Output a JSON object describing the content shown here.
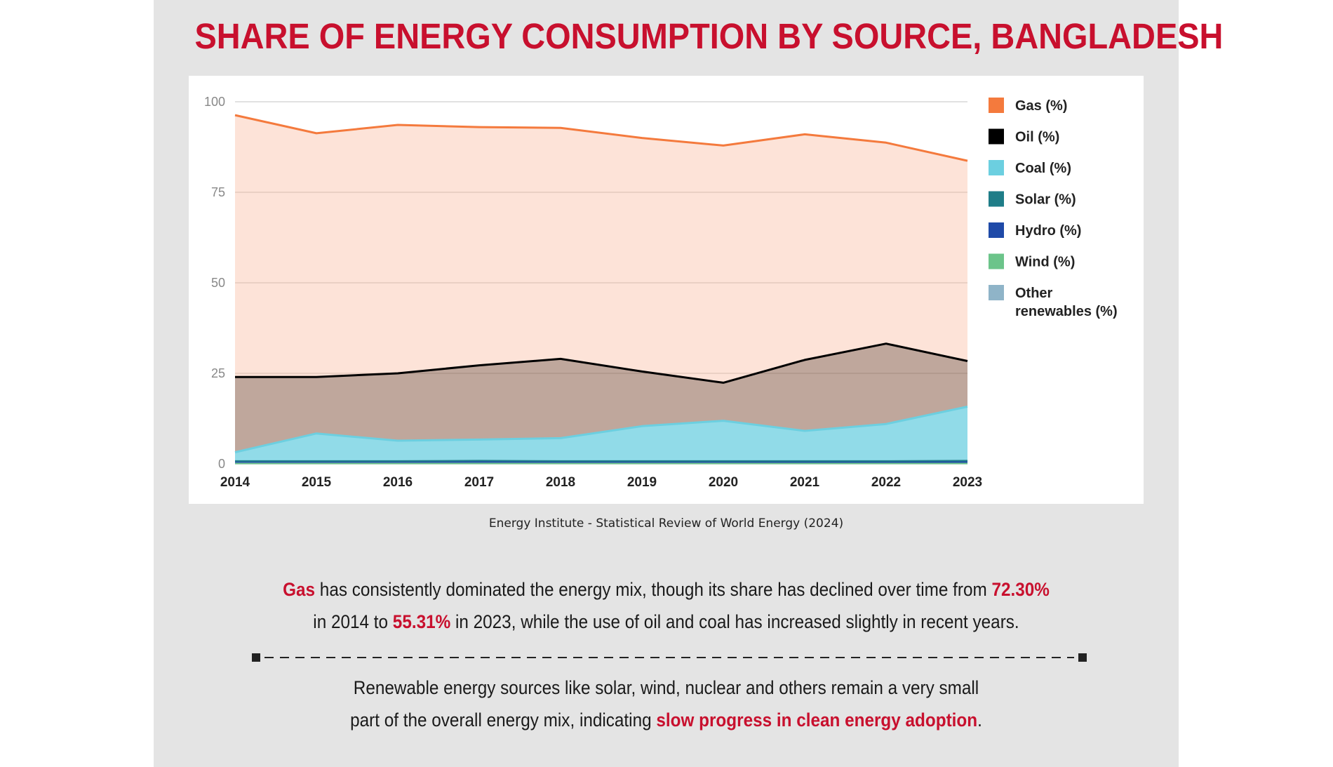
{
  "title": "SHARE OF ENERGY CONSUMPTION BY SOURCE, BANGLADESH",
  "source": "Energy Institute - Statistical Review of World Energy (2024)",
  "text": {
    "p1_a": "Gas",
    "p1_b": " has consistently dominated the energy mix, though its share has declined over time from ",
    "p1_c": "72.30%",
    "p1_d": "in 2014 to ",
    "p1_e": "55.31%",
    "p1_f": " in 2023, while the use of oil and coal has increased slightly in recent years.",
    "p2_a": "Renewable energy sources like solar, wind, nuclear and others remain a very small",
    "p2_b": "part of the overall energy mix, indicating ",
    "p2_c": "slow progress in clean energy adoption",
    "p2_d": "."
  },
  "colors": {
    "accent": "#c8102e",
    "gas": "#f47a3d",
    "oil": "#000000",
    "coal": "#6ccfe0",
    "solar": "#1f7d88",
    "hydro": "#1f4aa8",
    "wind": "#6cc48a",
    "other": "#8fb4c8"
  },
  "chart_data": {
    "type": "area",
    "stacked": true,
    "x": [
      2014,
      2015,
      2016,
      2017,
      2018,
      2019,
      2020,
      2021,
      2022,
      2023
    ],
    "ylim": [
      0,
      100
    ],
    "yticks": [
      0,
      25,
      50,
      75,
      100
    ],
    "grid": true,
    "legend_position": "right",
    "series": [
      {
        "name": "Other renewables (%)",
        "key": "other",
        "values": [
          0.1,
          0.1,
          0.1,
          0.1,
          0.1,
          0.1,
          0.1,
          0.1,
          0.1,
          0.1
        ]
      },
      {
        "name": "Wind (%)",
        "key": "wind",
        "values": [
          0.0,
          0.0,
          0.0,
          0.0,
          0.0,
          0.0,
          0.0,
          0.0,
          0.0,
          0.0
        ]
      },
      {
        "name": "Hydro (%)",
        "key": "hydro",
        "values": [
          0.6,
          0.6,
          0.6,
          0.6,
          0.5,
          0.5,
          0.5,
          0.4,
          0.4,
          0.4
        ]
      },
      {
        "name": "Solar (%)",
        "key": "solar",
        "values": [
          0.1,
          0.1,
          0.1,
          0.2,
          0.2,
          0.2,
          0.2,
          0.3,
          0.3,
          0.4
        ]
      },
      {
        "name": "Coal (%)",
        "key": "coal",
        "values": [
          2.4,
          7.6,
          5.6,
          5.8,
          6.3,
          9.6,
          11.1,
          8.3,
          10.2,
          14.9
        ]
      },
      {
        "name": "Oil (%)",
        "key": "oil",
        "values": [
          20.8,
          15.6,
          18.6,
          20.5,
          21.9,
          15.1,
          10.5,
          19.6,
          22.2,
          12.6
        ]
      },
      {
        "name": "Gas (%)",
        "key": "gas",
        "values": [
          72.3,
          67.3,
          68.6,
          65.8,
          63.8,
          64.5,
          65.5,
          62.3,
          55.5,
          55.31
        ]
      }
    ],
    "legend": [
      "Gas (%)",
      "Oil (%)",
      "Coal (%)",
      "Solar (%)",
      "Hydro (%)",
      "Wind (%)",
      "Other renewables (%)"
    ]
  }
}
